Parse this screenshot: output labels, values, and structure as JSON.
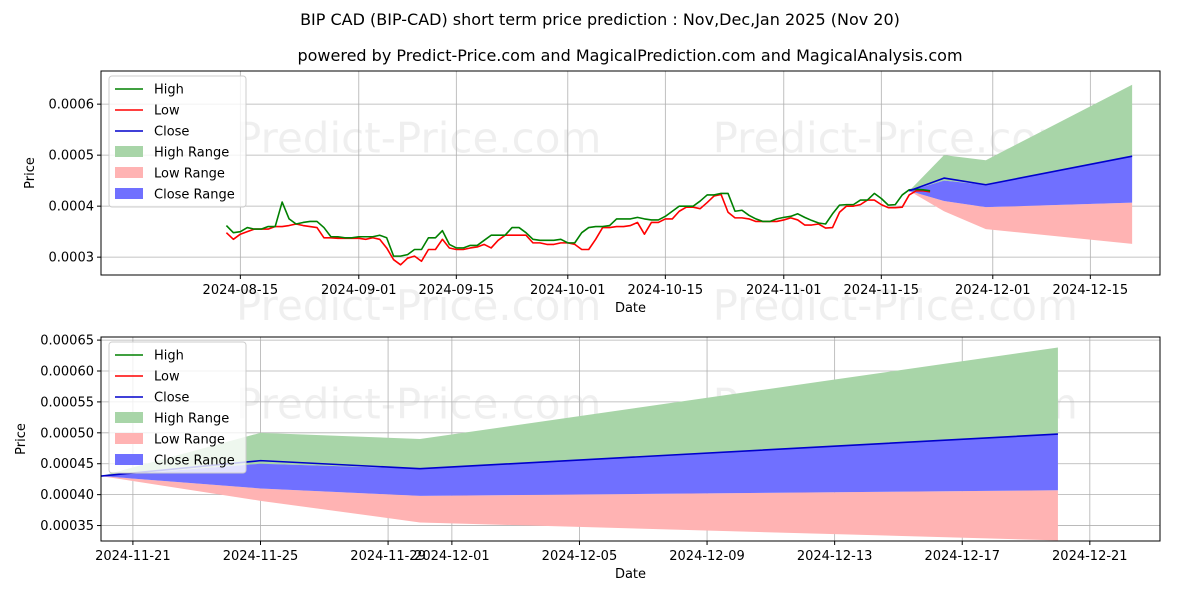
{
  "title": "BIP CAD (BIP-CAD) short term price prediction : Nov,Dec,Jan 2025 (Nov 20)",
  "subtitle": "powered by Predict-Price.com and MagicalPrediction.com and MagicalAnalysis.com",
  "watermark": "Predict-Price.com",
  "colors": {
    "high": "#008000",
    "low": "#ff0000",
    "close": "#0000cc",
    "high_range": "#a8d5a8",
    "low_range": "#ffb3b3",
    "close_range": "#7070ff",
    "grid": "#b0b0b0"
  },
  "chart_data": [
    {
      "type": "line",
      "xlabel": "Date",
      "ylabel": "Price",
      "xlim_day": [
        -20,
        132
      ],
      "ylim": [
        0.000265,
        0.000665
      ],
      "x_ticks": [
        {
          "day": 0,
          "label": "2024-08-15"
        },
        {
          "day": 17,
          "label": "2024-09-01"
        },
        {
          "day": 31,
          "label": "2024-09-15"
        },
        {
          "day": 47,
          "label": "2024-10-01"
        },
        {
          "day": 61,
          "label": "2024-10-15"
        },
        {
          "day": 78,
          "label": "2024-11-01"
        },
        {
          "day": 92,
          "label": "2024-11-15"
        },
        {
          "day": 108,
          "label": "2024-12-01"
        },
        {
          "day": 122,
          "label": "2024-12-15"
        }
      ],
      "y_ticks": [
        {
          "value": 0.0003,
          "label": "0.0003"
        },
        {
          "value": 0.0004,
          "label": "0.0004"
        },
        {
          "value": 0.0005,
          "label": "0.0005"
        },
        {
          "value": 0.0006,
          "label": "0.0006"
        }
      ],
      "hist_start_day": -2,
      "high": [
        0.000362,
        0.000348,
        0.00035,
        0.000358,
        0.000355,
        0.000355,
        0.00036,
        0.00036,
        0.000408,
        0.000375,
        0.000365,
        0.000368,
        0.00037,
        0.00037,
        0.000358,
        0.00034,
        0.00034,
        0.000338,
        0.000338,
        0.00034,
        0.00034,
        0.00034,
        0.000343,
        0.000338,
        0.000302,
        0.000302,
        0.000305,
        0.000315,
        0.000315,
        0.000338,
        0.000338,
        0.000352,
        0.000325,
        0.000318,
        0.000318,
        0.000323,
        0.000323,
        0.000333,
        0.000343,
        0.000343,
        0.000343,
        0.000358,
        0.000358,
        0.000348,
        0.000335,
        0.000333,
        0.000333,
        0.000333,
        0.000335,
        0.000328,
        0.000328,
        0.000348,
        0.000358,
        0.00036,
        0.00036,
        0.000362,
        0.000375,
        0.000375,
        0.000375,
        0.000378,
        0.000375,
        0.000373,
        0.000373,
        0.00038,
        0.00039,
        0.0004,
        0.0004,
        0.0004,
        0.00041,
        0.000422,
        0.000422,
        0.000425,
        0.000425,
        0.00039,
        0.000392,
        0.000382,
        0.000375,
        0.00037,
        0.00037,
        0.000375,
        0.000378,
        0.00038,
        0.000385,
        0.000378,
        0.000372,
        0.000367,
        0.000365,
        0.000385,
        0.000402,
        0.000403,
        0.000403,
        0.000412,
        0.000412,
        0.000425,
        0.000415,
        0.000402,
        0.000403,
        0.000422,
        0.000432,
        0.000433,
        0.000432,
        0.00043
      ],
      "low": [
        0.000348,
        0.000335,
        0.000345,
        0.00035,
        0.000355,
        0.000355,
        0.000355,
        0.00036,
        0.00036,
        0.000362,
        0.000365,
        0.000362,
        0.00036,
        0.000358,
        0.000338,
        0.000338,
        0.000337,
        0.000337,
        0.000337,
        0.000337,
        0.000335,
        0.000338,
        0.000335,
        0.000318,
        0.000295,
        0.000285,
        0.000298,
        0.000302,
        0.000292,
        0.000315,
        0.000315,
        0.000335,
        0.000318,
        0.000315,
        0.000315,
        0.000318,
        0.00032,
        0.000325,
        0.000318,
        0.000333,
        0.000343,
        0.000343,
        0.000343,
        0.000343,
        0.000328,
        0.000328,
        0.000325,
        0.000325,
        0.000328,
        0.000328,
        0.000325,
        0.000315,
        0.000315,
        0.000335,
        0.000358,
        0.000358,
        0.00036,
        0.00036,
        0.000362,
        0.000368,
        0.000345,
        0.000368,
        0.000368,
        0.000375,
        0.000375,
        0.00039,
        0.000398,
        0.000398,
        0.000395,
        0.000407,
        0.00042,
        0.000423,
        0.000388,
        0.000377,
        0.000377,
        0.000375,
        0.00037,
        0.00037,
        0.00037,
        0.00037,
        0.000373,
        0.000377,
        0.000373,
        0.000363,
        0.000363,
        0.000365,
        0.000357,
        0.000358,
        0.000388,
        0.0004,
        0.0004,
        0.000403,
        0.000412,
        0.000412,
        0.000403,
        0.000397,
        0.000397,
        0.000398,
        0.000422,
        0.00043,
        0.00043,
        0.000428
      ],
      "forecast": {
        "days": [
          96,
          101,
          107,
          128
        ],
        "close": [
          0.00043,
          0.000455,
          0.000442,
          0.000498
        ],
        "high_range": [
          0.00043,
          0.0005,
          0.00049,
          0.000638
        ],
        "low_range": [
          0.00043,
          0.00039,
          0.000355,
          0.000326
        ],
        "close_upper": [
          0.00043,
          0.00045,
          0.000442,
          0.000498
        ],
        "close_lower": [
          0.00043,
          0.00041,
          0.000398,
          0.000407
        ]
      },
      "legend": [
        {
          "key": "high",
          "label": "High",
          "kind": "line"
        },
        {
          "key": "low",
          "label": "Low",
          "kind": "line"
        },
        {
          "key": "close",
          "label": "Close",
          "kind": "line"
        },
        {
          "key": "high_range",
          "label": "High Range",
          "kind": "patch"
        },
        {
          "key": "low_range",
          "label": "Low Range",
          "kind": "patch"
        },
        {
          "key": "close_range",
          "label": "Close Range",
          "kind": "patch"
        }
      ]
    },
    {
      "type": "area",
      "xlabel": "Date",
      "ylabel": "Price",
      "xlim_day": [
        0,
        33.2
      ],
      "ylim": [
        0.000325,
        0.000655
      ],
      "x_ticks": [
        {
          "day": 1,
          "label": "2024-11-21"
        },
        {
          "day": 5,
          "label": "2024-11-25"
        },
        {
          "day": 9,
          "label": "2024-11-29"
        },
        {
          "day": 11,
          "label": "2024-12-01"
        },
        {
          "day": 15,
          "label": "2024-12-05"
        },
        {
          "day": 19,
          "label": "2024-12-09"
        },
        {
          "day": 23,
          "label": "2024-12-13"
        },
        {
          "day": 27,
          "label": "2024-12-17"
        },
        {
          "day": 31,
          "label": "2024-12-21"
        }
      ],
      "y_ticks": [
        {
          "value": 0.00035,
          "label": "0.00035"
        },
        {
          "value": 0.0004,
          "label": "0.00040"
        },
        {
          "value": 0.00045,
          "label": "0.00045"
        },
        {
          "value": 0.0005,
          "label": "0.00050"
        },
        {
          "value": 0.00055,
          "label": "0.00055"
        },
        {
          "value": 0.0006,
          "label": "0.00060"
        },
        {
          "value": 0.00065,
          "label": "0.00065"
        }
      ],
      "days": [
        0,
        5,
        10,
        30
      ],
      "close": [
        0.00043,
        0.000455,
        0.000442,
        0.000498
      ],
      "high_range": [
        0.00043,
        0.0005,
        0.00049,
        0.000638
      ],
      "low_range": [
        0.00043,
        0.00039,
        0.000355,
        0.000326
      ],
      "close_upper": [
        0.00043,
        0.00045,
        0.000442,
        0.000498
      ],
      "close_lower": [
        0.00043,
        0.00041,
        0.000398,
        0.000407
      ],
      "legend": [
        {
          "key": "high",
          "label": "High",
          "kind": "line"
        },
        {
          "key": "low",
          "label": "Low",
          "kind": "line"
        },
        {
          "key": "close",
          "label": "Close",
          "kind": "line"
        },
        {
          "key": "high_range",
          "label": "High Range",
          "kind": "patch"
        },
        {
          "key": "low_range",
          "label": "Low Range",
          "kind": "patch"
        },
        {
          "key": "close_range",
          "label": "Close Range",
          "kind": "patch"
        }
      ]
    }
  ]
}
